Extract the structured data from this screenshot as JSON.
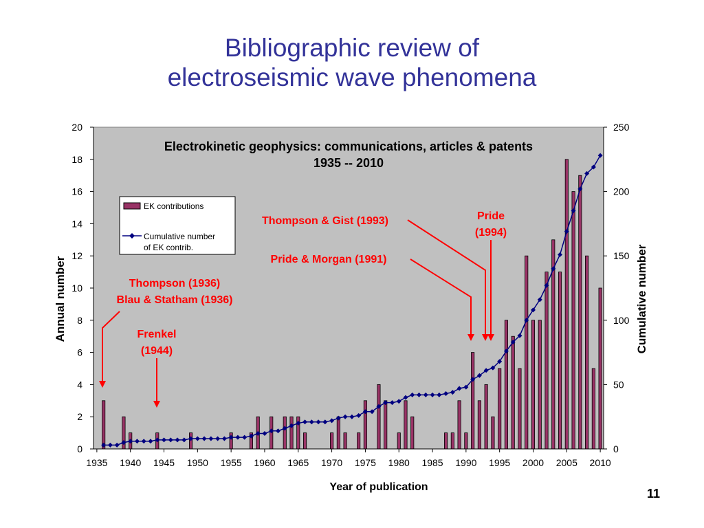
{
  "slide": {
    "title_line1": "Bibliographic review of",
    "title_line2": "electroseismic wave phenomena",
    "page_number": "11"
  },
  "chart_data": {
    "type": "bar",
    "title_line1": "Electrokinetic geophysics: communications, articles & patents",
    "title_line2": "1935 -- 2010",
    "xlabel": "Year of publication",
    "ylabel": "Annual number",
    "y2label": "Cumulative number",
    "xlim": [
      1935,
      2010
    ],
    "ylim": [
      0,
      20
    ],
    "y2lim": [
      0,
      250
    ],
    "x_ticks": [
      1935,
      1940,
      1945,
      1950,
      1955,
      1960,
      1965,
      1970,
      1975,
      1980,
      1985,
      1990,
      1995,
      2000,
      2005,
      2010
    ],
    "y_ticks": [
      0,
      2,
      4,
      6,
      8,
      10,
      12,
      14,
      16,
      18,
      20
    ],
    "y2_ticks": [
      0,
      50,
      100,
      150,
      200,
      250
    ],
    "grid": false,
    "legend_position": "upper-left",
    "plot_background": "#c0c0c0",
    "colors": {
      "bar_fill": "#993366",
      "bar_stroke": "#000000",
      "line": "#000080",
      "annotation": "#ff0000"
    },
    "series": [
      {
        "name": "EK contributions",
        "kind": "bar",
        "axis": "left",
        "x": [
          1936,
          1939,
          1940,
          1944,
          1949,
          1955,
          1958,
          1959,
          1961,
          1963,
          1964,
          1965,
          1966,
          1970,
          1971,
          1972,
          1974,
          1975,
          1977,
          1978,
          1980,
          1981,
          1982,
          1987,
          1988,
          1989,
          1990,
          1991,
          1992,
          1993,
          1994,
          1995,
          1996,
          1997,
          1998,
          1999,
          2000,
          2001,
          2002,
          2003,
          2004,
          2005,
          2006,
          2007,
          2008,
          2009,
          2010
        ],
        "values": [
          3,
          2,
          1,
          1,
          1,
          1,
          1,
          2,
          2,
          2,
          2,
          2,
          1,
          1,
          2,
          1,
          1,
          3,
          4,
          3,
          1,
          3,
          2,
          1,
          1,
          3,
          1,
          6,
          3,
          4,
          2,
          5,
          8,
          7,
          5,
          12,
          8,
          8,
          11,
          13,
          11,
          18,
          16,
          17,
          12,
          5,
          10
        ]
      },
      {
        "name_line1": "Cumulative number",
        "name_line2": "of EK contrib.",
        "kind": "line",
        "axis": "right",
        "marker": "diamond",
        "x": [
          1936,
          1937,
          1938,
          1939,
          1940,
          1941,
          1942,
          1943,
          1944,
          1945,
          1946,
          1947,
          1948,
          1949,
          1950,
          1951,
          1952,
          1953,
          1954,
          1955,
          1956,
          1957,
          1958,
          1959,
          1960,
          1961,
          1962,
          1963,
          1964,
          1965,
          1966,
          1967,
          1968,
          1969,
          1970,
          1971,
          1972,
          1973,
          1974,
          1975,
          1976,
          1977,
          1978,
          1979,
          1980,
          1981,
          1982,
          1983,
          1984,
          1985,
          1986,
          1987,
          1988,
          1989,
          1990,
          1991,
          1992,
          1993,
          1994,
          1995,
          1996,
          1997,
          1998,
          1999,
          2000,
          2001,
          2002,
          2003,
          2004,
          2005,
          2006,
          2007,
          2008,
          2009,
          2010
        ],
        "values": [
          3,
          3,
          3,
          5,
          6,
          6,
          6,
          6,
          7,
          7,
          7,
          7,
          7,
          8,
          8,
          8,
          8,
          8,
          8,
          9,
          9,
          9,
          10,
          12,
          12,
          14,
          14,
          16,
          18,
          20,
          21,
          21,
          21,
          21,
          22,
          24,
          25,
          25,
          26,
          29,
          29,
          33,
          36,
          36,
          37,
          40,
          42,
          42,
          42,
          42,
          42,
          43,
          44,
          47,
          48,
          54,
          57,
          61,
          63,
          68,
          76,
          83,
          88,
          100,
          108,
          116,
          127,
          140,
          151,
          169,
          185,
          202,
          214,
          219,
          228
        ]
      }
    ],
    "annotations": [
      {
        "id": "thompson-1936",
        "lines": [
          "Thompson (1936)",
          "Blau & Statham (1936)"
        ]
      },
      {
        "id": "frenkel-1944",
        "lines": [
          "Frenkel",
          "(1944)"
        ]
      },
      {
        "id": "pride-morgan-1991",
        "lines": [
          "Pride & Morgan (1991)"
        ]
      },
      {
        "id": "thompson-gist-1993",
        "lines": [
          "Thompson & Gist (1993)"
        ]
      },
      {
        "id": "pride-1994",
        "lines": [
          "Pride",
          "(1994)"
        ]
      }
    ]
  }
}
